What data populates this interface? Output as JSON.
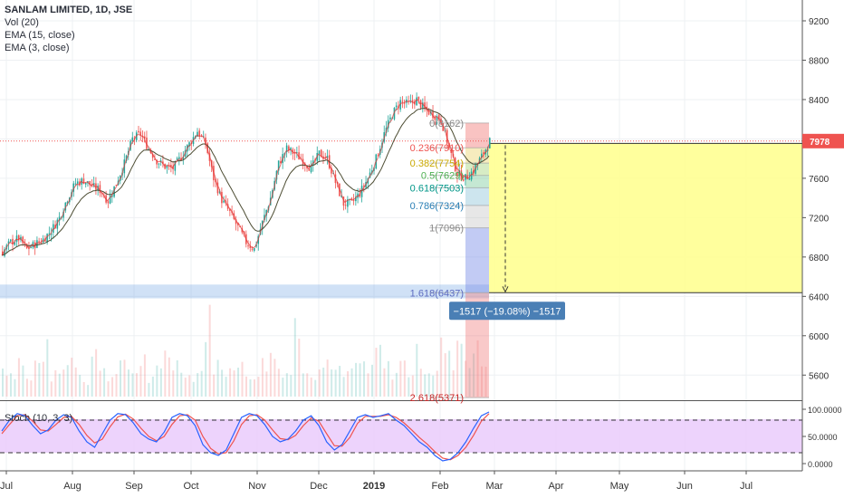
{
  "legend": {
    "symbol": "SANLAM LIMITED, 1D, JSE",
    "vol": "Vol (20)",
    "ema15": "EMA (15, close)",
    "ema3": "EMA (3, close)",
    "stoch": "Stoch (10, 3, 3)"
  },
  "colors": {
    "up": "#26a69a",
    "down": "#ef5350",
    "ema15": "#4d4d33",
    "ema3": "#e03030",
    "stoch_k": "#2962ff",
    "stoch_d": "#ef5350",
    "stoch_bg": "#e9c8fb",
    "target_box": "#ffff8c",
    "measure_label": "#4a7fb5"
  },
  "chart_data": [
    {
      "type": "candlestick",
      "name": "price",
      "x_labels": [
        "Jul",
        "Aug",
        "Sep",
        "Oct",
        "Nov",
        "Dec",
        "2019",
        "Feb",
        "Mar",
        "Apr",
        "May",
        "Jun",
        "Jul"
      ],
      "y_ticks": [
        "9200",
        "8800",
        "8400",
        "8000",
        "7600",
        "7200",
        "6800",
        "6400",
        "6000",
        "5600"
      ],
      "ylim": [
        5400,
        9400
      ],
      "last_price": "7978",
      "close_path": [
        [
          0,
          6850
        ],
        [
          4,
          6950
        ],
        [
          8,
          6990
        ],
        [
          12,
          6880
        ],
        [
          16,
          6930
        ],
        [
          20,
          6980
        ],
        [
          24,
          7070
        ],
        [
          28,
          7200
        ],
        [
          32,
          7400
        ],
        [
          36,
          7550
        ],
        [
          40,
          7580
        ],
        [
          44,
          7520
        ],
        [
          48,
          7480
        ],
        [
          52,
          7370
        ],
        [
          56,
          7550
        ],
        [
          60,
          7750
        ],
        [
          64,
          8000
        ],
        [
          68,
          8050
        ],
        [
          72,
          7900
        ],
        [
          76,
          7780
        ],
        [
          80,
          7720
        ],
        [
          84,
          7700
        ],
        [
          88,
          7820
        ],
        [
          92,
          7950
        ],
        [
          96,
          8080
        ],
        [
          100,
          7950
        ],
        [
          104,
          7600
        ],
        [
          108,
          7380
        ],
        [
          112,
          7250
        ],
        [
          116,
          7100
        ],
        [
          120,
          6950
        ],
        [
          124,
          6880
        ],
        [
          128,
          7150
        ],
        [
          132,
          7400
        ],
        [
          136,
          7750
        ],
        [
          140,
          7900
        ],
        [
          144,
          7850
        ],
        [
          148,
          7780
        ],
        [
          152,
          7700
        ],
        [
          156,
          7850
        ],
        [
          160,
          7800
        ],
        [
          164,
          7560
        ],
        [
          168,
          7340
        ],
        [
          172,
          7350
        ],
        [
          176,
          7450
        ],
        [
          180,
          7600
        ],
        [
          184,
          7800
        ],
        [
          188,
          8050
        ],
        [
          192,
          8250
        ],
        [
          196,
          8380
        ],
        [
          200,
          8350
        ],
        [
          204,
          8400
        ],
        [
          208,
          8300
        ],
        [
          212,
          8250
        ],
        [
          216,
          8200
        ],
        [
          220,
          7900
        ],
        [
          224,
          7650
        ],
        [
          228,
          7600
        ],
        [
          232,
          7680
        ],
        [
          236,
          7820
        ],
        [
          240,
          7978
        ]
      ],
      "fib_levels": [
        {
          "label": "0(8162)",
          "value": 8162
        },
        {
          "label": "0.236(7910)",
          "value": 7910
        },
        {
          "label": "0.382(7754)",
          "value": 7754
        },
        {
          "label": "0.5(7629)",
          "value": 7629
        },
        {
          "label": "0.618(7503)",
          "value": 7503
        },
        {
          "label": "0.786(7324)",
          "value": 7324
        },
        {
          "label": "1(7096)",
          "value": 7096
        },
        {
          "label": "1.618(6437)",
          "value": 6437
        },
        {
          "label": "2.618(5371)",
          "value": 5371
        }
      ],
      "measure": {
        "label": "−1517 (−19.08%) −1517",
        "from": 7954,
        "to": 6437
      }
    },
    {
      "type": "bar",
      "name": "volume",
      "values_relative": [
        0.35,
        0.3,
        0.45,
        0.2,
        0.4,
        0.55,
        0.25,
        0.3,
        0.5,
        0.35,
        0.2,
        0.6,
        0.3,
        0.25,
        0.4,
        0.35,
        0.3,
        0.45,
        0.2,
        0.3,
        0.55,
        0.4,
        0.35,
        0.25,
        0.3,
        0.9,
        0.4,
        0.3,
        0.45,
        0.35,
        0.25,
        0.3,
        0.4,
        0.5,
        0.35,
        0.3,
        0.85,
        0.4,
        0.3,
        0.35,
        0.45,
        0.3,
        0.25,
        0.35,
        0.4,
        0.3,
        0.55,
        0.35,
        0.3,
        0.4,
        0.3,
        0.5,
        0.35,
        0.3,
        0.6,
        0.45,
        0.7,
        0.5,
        0.55,
        0.4
      ]
    },
    {
      "type": "line",
      "name": "stochastic",
      "y_ticks": [
        "100.0000",
        "50.0000",
        "0.0000"
      ],
      "ylim": [
        0,
        100
      ],
      "k": [
        60,
        80,
        92,
        88,
        70,
        55,
        62,
        80,
        90,
        85,
        60,
        40,
        30,
        55,
        80,
        92,
        90,
        75,
        55,
        45,
        40,
        58,
        85,
        92,
        88,
        70,
        35,
        20,
        15,
        25,
        55,
        85,
        92,
        88,
        72,
        50,
        40,
        45,
        60,
        80,
        88,
        70,
        40,
        25,
        35,
        60,
        85,
        90,
        85,
        88,
        92,
        80,
        70,
        55,
        40,
        30,
        15,
        5,
        8,
        20,
        40,
        65,
        88,
        95
      ],
      "d": [
        55,
        72,
        88,
        90,
        78,
        62,
        60,
        72,
        85,
        87,
        72,
        52,
        38,
        45,
        68,
        86,
        91,
        82,
        65,
        50,
        42,
        50,
        72,
        88,
        90,
        80,
        50,
        28,
        18,
        20,
        42,
        72,
        88,
        90,
        80,
        62,
        46,
        44,
        52,
        70,
        84,
        78,
        55,
        33,
        32,
        48,
        74,
        87,
        87,
        87,
        90,
        85,
        75,
        62,
        48,
        36,
        22,
        10,
        7,
        15,
        30,
        52,
        78,
        92
      ]
    }
  ]
}
